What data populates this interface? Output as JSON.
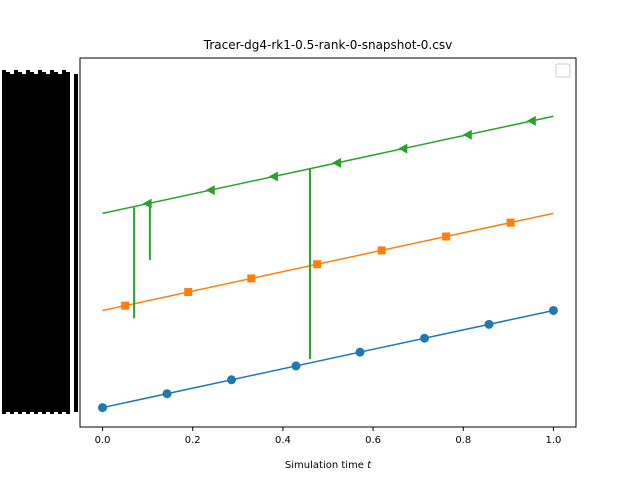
{
  "chart_data": {
    "type": "line",
    "title": "Tracer-dg4-rk1-0.5-rank-0-snapshot-0.csv",
    "xlabel_text": "Simulation time ",
    "xlabel_var": "t",
    "ylabel": "",
    "xlim": [
      -0.05,
      1.05
    ],
    "ylim": [
      -0.1,
      1.8
    ],
    "x_ticks": [
      "0.0",
      "0.2",
      "0.4",
      "0.6",
      "0.8",
      "1.0"
    ],
    "x_tick_values": [
      0.0,
      0.2,
      0.4,
      0.6,
      0.8,
      1.0
    ],
    "legend_placement": "upper-right",
    "grid": false,
    "series": [
      {
        "color": "#1f77b4",
        "marker": "circle",
        "x": [
          0.0,
          1.0
        ],
        "y": [
          0.0,
          0.5
        ],
        "marker_x": [
          0.0,
          0.143,
          0.286,
          0.429,
          0.571,
          0.714,
          0.857,
          1.0
        ]
      },
      {
        "color": "#ff7f0e",
        "marker": "square",
        "x": [
          0.0,
          1.0
        ],
        "y": [
          0.5,
          1.0
        ],
        "marker_x": [
          0.05,
          0.19,
          0.33,
          0.476,
          0.619,
          0.762,
          0.905
        ]
      },
      {
        "color": "#2ca02c",
        "marker": "triangle-left",
        "x": [
          0.0,
          1.0
        ],
        "y": [
          1.0,
          1.5
        ],
        "marker_x": [
          0.1,
          0.24,
          0.38,
          0.52,
          0.667,
          0.81,
          0.952
        ],
        "spikes": [
          {
            "x": 0.07,
            "y_top": 1.03,
            "y_bottom": 0.46
          },
          {
            "x": 0.105,
            "y_top": 1.05,
            "y_bottom": 0.76
          },
          {
            "x": 0.46,
            "y_top": 1.23,
            "y_bottom": 0.25
          }
        ]
      }
    ]
  }
}
